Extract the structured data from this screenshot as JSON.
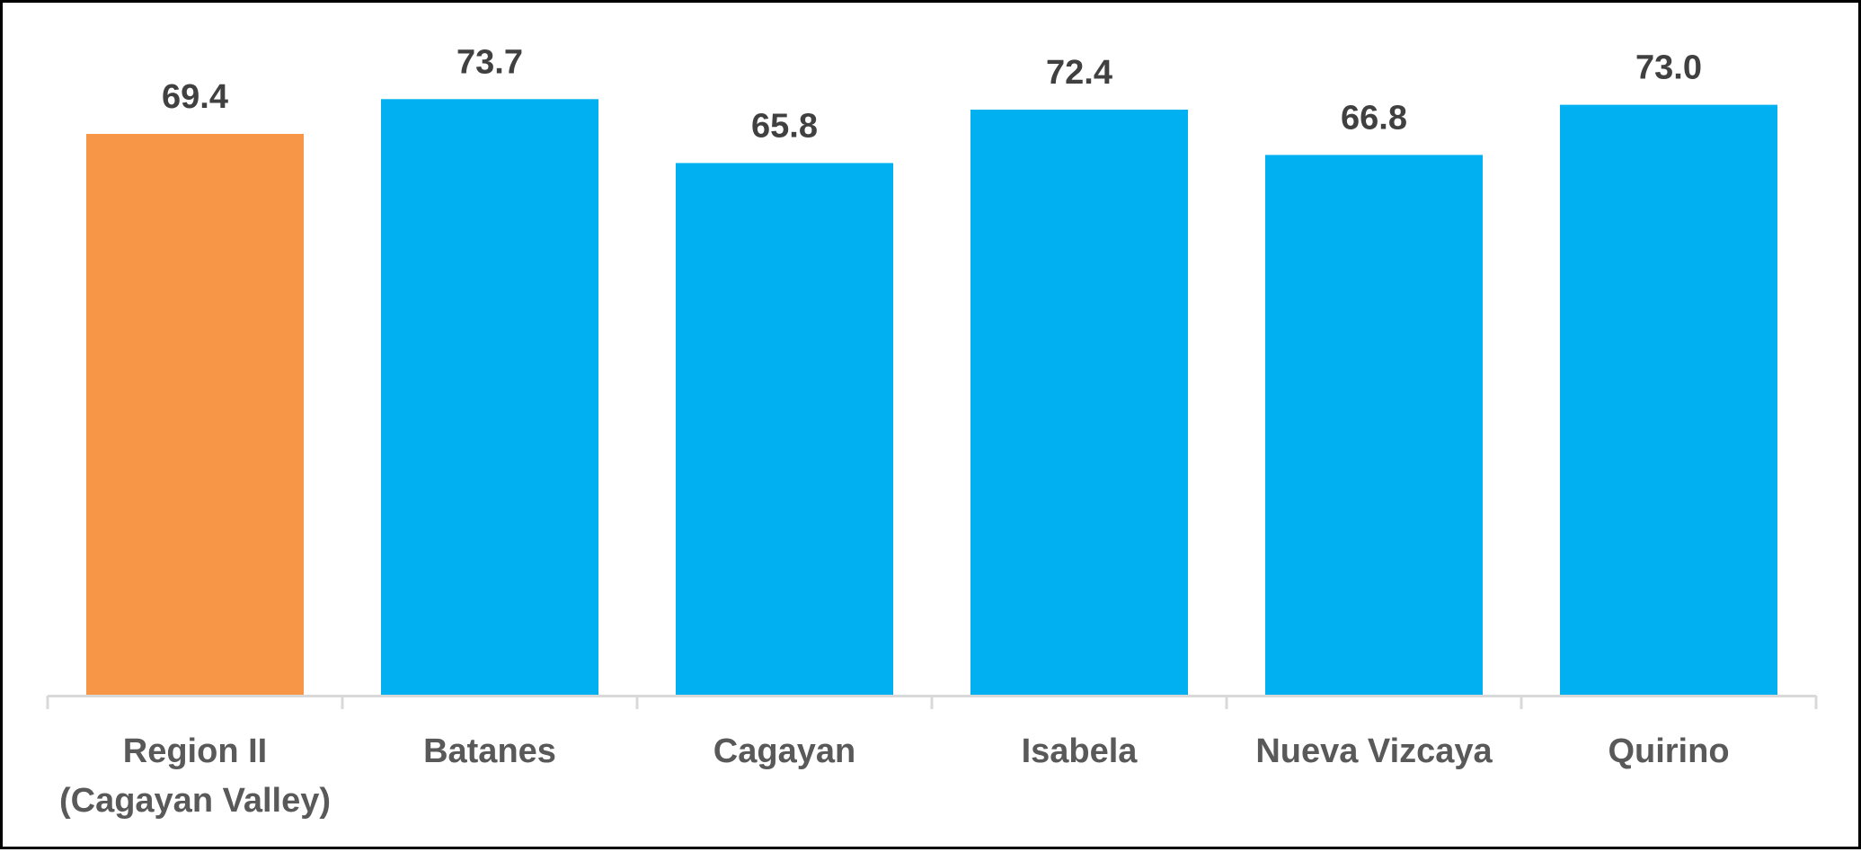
{
  "chart_data": {
    "type": "bar",
    "categories": [
      [
        "Region II",
        "(Cagayan Valley)"
      ],
      [
        "Batanes"
      ],
      [
        "Cagayan"
      ],
      [
        "Isabela"
      ],
      [
        "Nueva Vizcaya"
      ],
      [
        "Quirino"
      ]
    ],
    "values": [
      69.4,
      73.7,
      65.8,
      72.4,
      66.8,
      73.0
    ],
    "value_labels": [
      "69.4",
      "73.7",
      "65.8",
      "72.4",
      "66.8",
      "73.0"
    ],
    "colors": [
      "#F79646",
      "#00B0F0",
      "#00B0F0",
      "#00B0F0",
      "#00B0F0",
      "#00B0F0"
    ],
    "ylim": [
      0,
      80
    ],
    "grid": false,
    "legend": "none",
    "axis_color": "#D9D9D9"
  }
}
